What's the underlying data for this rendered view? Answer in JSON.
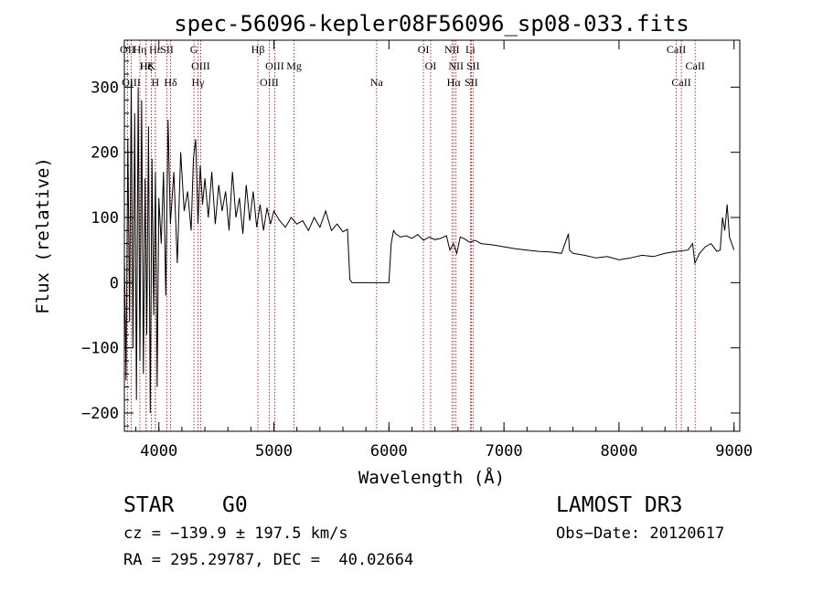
{
  "chart_data": {
    "type": "line",
    "title": "spec-56096-kepler08F56096_sp08-033.fits",
    "xlabel": "Wavelength (Å)",
    "ylabel": "Flux (relative)",
    "xlim": [
      3700,
      9050
    ],
    "ylim": [
      -228,
      372
    ],
    "xticks": [
      4000,
      5000,
      6000,
      7000,
      8000,
      9000
    ],
    "yticks": [
      -200,
      -100,
      0,
      100,
      200,
      300
    ],
    "grid": false,
    "series": [
      {
        "name": "flux",
        "x": [
          3700,
          3715,
          3730,
          3745,
          3760,
          3775,
          3790,
          3805,
          3820,
          3835,
          3850,
          3865,
          3880,
          3895,
          3910,
          3925,
          3940,
          3955,
          3970,
          3985,
          4000,
          4020,
          4040,
          4060,
          4080,
          4100,
          4130,
          4160,
          4190,
          4220,
          4250,
          4280,
          4300,
          4320,
          4340,
          4360,
          4380,
          4400,
          4430,
          4460,
          4490,
          4520,
          4550,
          4580,
          4610,
          4640,
          4670,
          4700,
          4730,
          4760,
          4790,
          4820,
          4850,
          4880,
          4910,
          4940,
          4970,
          5000,
          5050,
          5100,
          5150,
          5200,
          5250,
          5300,
          5350,
          5400,
          5450,
          5500,
          5550,
          5600,
          5640,
          5660,
          5680,
          5700,
          5800,
          5900,
          6000,
          6020,
          6040,
          6060,
          6100,
          6150,
          6200,
          6250,
          6300,
          6350,
          6400,
          6450,
          6500,
          6530,
          6560,
          6590,
          6620,
          6650,
          6700,
          6750,
          6800,
          6900,
          7000,
          7100,
          7200,
          7300,
          7400,
          7500,
          7560,
          7570,
          7600,
          7700,
          7800,
          7900,
          8000,
          8100,
          8200,
          8300,
          8400,
          8500,
          8600,
          8640,
          8660,
          8700,
          8750,
          8800,
          8850,
          8880,
          8900,
          8920,
          8940,
          8960,
          8980,
          9000
        ],
        "y": [
          40,
          -150,
          220,
          -60,
          310,
          -100,
          260,
          -180,
          300,
          -120,
          280,
          -140,
          160,
          -80,
          240,
          -200,
          190,
          -50,
          170,
          -160,
          130,
          60,
          170,
          -20,
          250,
          90,
          170,
          30,
          200,
          110,
          140,
          80,
          190,
          220,
          90,
          180,
          120,
          160,
          100,
          170,
          90,
          150,
          110,
          140,
          80,
          170,
          100,
          130,
          75,
          150,
          95,
          140,
          85,
          120,
          80,
          115,
          90,
          110,
          95,
          85,
          100,
          90,
          95,
          80,
          100,
          85,
          110,
          80,
          90,
          78,
          82,
          5,
          0,
          0,
          0,
          0,
          0,
          60,
          80,
          75,
          70,
          72,
          68,
          74,
          65,
          70,
          66,
          68,
          72,
          50,
          60,
          45,
          70,
          68,
          62,
          65,
          60,
          58,
          55,
          52,
          50,
          48,
          47,
          45,
          75,
          50,
          45,
          42,
          38,
          40,
          35,
          38,
          42,
          40,
          45,
          48,
          50,
          60,
          30,
          45,
          55,
          60,
          48,
          50,
          100,
          80,
          120,
          70,
          60,
          50
        ]
      }
    ],
    "spectral_lines": [
      {
        "label": "Hε",
        "wl": 3970
      },
      {
        "label": "K",
        "wl": 3934
      },
      {
        "label": "H",
        "wl": 3969
      },
      {
        "label": "OII",
        "wl": 3727
      },
      {
        "label": "He",
        "wl": 3889
      },
      {
        "label": "OIII",
        "wl": 3760
      },
      {
        "label": "Hη",
        "wl": 3835
      },
      {
        "label": "Hζ",
        "wl": 3889
      },
      {
        "label": "Hδ",
        "wl": 4102
      },
      {
        "label": "SII",
        "wl": 4070
      },
      {
        "label": "OIII",
        "wl": 4363
      },
      {
        "label": "Hγ",
        "wl": 4340
      },
      {
        "label": "G",
        "wl": 4305
      },
      {
        "label": "OIII",
        "wl": 5007
      },
      {
        "label": "OIII",
        "wl": 4959
      },
      {
        "label": "Hβ",
        "wl": 4861
      },
      {
        "label": "Mg",
        "wl": 5175
      },
      {
        "label": "Na",
        "wl": 5893
      },
      {
        "label": "OI",
        "wl": 6300
      },
      {
        "label": "OI",
        "wl": 6363
      },
      {
        "label": "Hα",
        "wl": 6563
      },
      {
        "label": "NII",
        "wl": 6548
      },
      {
        "label": "NII",
        "wl": 6583
      },
      {
        "label": "SII",
        "wl": 6716
      },
      {
        "label": "Li",
        "wl": 6708
      },
      {
        "label": "SII",
        "wl": 6731
      },
      {
        "label": "CaII",
        "wl": 8542
      },
      {
        "label": "CaII",
        "wl": 8498
      },
      {
        "label": "CaII",
        "wl": 8662
      }
    ]
  },
  "info": {
    "type_label": "STAR",
    "subclass": "G0",
    "survey": "LAMOST DR3",
    "cz": "cz = −139.9 ± 197.5 km/s",
    "obs_date": "Obs−Date: 20120617",
    "coords": "RA = 295.29787, DEC =  40.02664"
  }
}
